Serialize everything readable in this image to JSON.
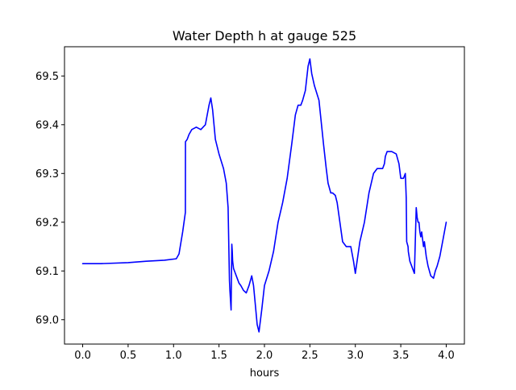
{
  "chart_data": {
    "type": "line",
    "title": "Water Depth h at gauge 525",
    "xlabel": "hours",
    "ylabel": "",
    "xlim": [
      -0.2,
      4.2
    ],
    "ylim": [
      68.95,
      69.56
    ],
    "x_ticks": [
      0.0,
      0.5,
      1.0,
      1.5,
      2.0,
      2.5,
      3.0,
      3.5,
      4.0
    ],
    "x_tick_labels": [
      "0.0",
      "0.5",
      "1.0",
      "1.5",
      "2.0",
      "2.5",
      "3.0",
      "3.5",
      "4.0"
    ],
    "y_ticks": [
      69.0,
      69.1,
      69.2,
      69.3,
      69.4,
      69.5
    ],
    "y_tick_labels": [
      "69.0",
      "69.1",
      "69.2",
      "69.3",
      "69.4",
      "69.5"
    ],
    "grid": false,
    "line_color": "#0000ff",
    "series": [
      {
        "x": [
          0.0,
          0.2,
          0.5,
          0.7,
          0.9,
          1.03,
          1.06,
          1.1,
          1.13,
          1.131,
          1.15,
          1.17,
          1.2,
          1.25,
          1.3,
          1.35,
          1.39,
          1.41,
          1.43,
          1.46,
          1.5,
          1.55,
          1.58,
          1.6,
          1.615,
          1.62,
          1.633,
          1.641,
          1.646,
          1.65,
          1.66,
          1.67,
          1.7,
          1.72,
          1.74,
          1.77,
          1.8,
          1.83,
          1.86,
          1.88,
          1.9,
          1.92,
          1.94,
          1.97,
          2.0,
          2.05,
          2.1,
          2.15,
          2.2,
          2.25,
          2.3,
          2.34,
          2.37,
          2.4,
          2.42,
          2.45,
          2.48,
          2.5,
          2.52,
          2.55,
          2.6,
          2.65,
          2.68,
          2.7,
          2.73,
          2.75,
          2.78,
          2.8,
          2.83,
          2.86,
          2.9,
          2.95,
          2.98,
          3.0,
          3.05,
          3.1,
          3.15,
          3.2,
          3.24,
          3.28,
          3.3,
          3.32,
          3.33,
          3.35,
          3.4,
          3.45,
          3.48,
          3.5,
          3.53,
          3.55,
          3.56,
          3.565,
          3.58,
          3.583,
          3.6,
          3.62,
          3.65,
          3.67,
          3.68,
          3.69,
          3.7,
          3.71,
          3.72,
          3.73,
          3.74,
          3.75,
          3.76,
          3.78,
          3.8,
          3.83,
          3.86,
          3.88,
          3.9,
          3.93,
          3.96,
          4.0
        ],
        "y": [
          69.115,
          69.115,
          69.117,
          69.12,
          69.122,
          69.125,
          69.135,
          69.18,
          69.22,
          69.365,
          69.37,
          69.38,
          69.39,
          69.395,
          69.39,
          69.4,
          69.44,
          69.455,
          69.43,
          69.37,
          69.34,
          69.31,
          69.28,
          69.23,
          69.08,
          69.06,
          69.02,
          69.155,
          69.14,
          69.12,
          69.105,
          69.1,
          69.085,
          69.075,
          69.07,
          69.06,
          69.055,
          69.07,
          69.09,
          69.07,
          69.03,
          68.99,
          68.975,
          69.02,
          69.07,
          69.1,
          69.14,
          69.2,
          69.24,
          69.29,
          69.36,
          69.42,
          69.44,
          69.44,
          69.45,
          69.47,
          69.52,
          69.535,
          69.505,
          69.48,
          69.45,
          69.36,
          69.31,
          69.28,
          69.26,
          69.26,
          69.255,
          69.24,
          69.2,
          69.16,
          69.15,
          69.15,
          69.12,
          69.095,
          69.16,
          69.2,
          69.26,
          69.3,
          69.31,
          69.31,
          69.31,
          69.32,
          69.335,
          69.345,
          69.345,
          69.34,
          69.32,
          69.29,
          69.29,
          69.3,
          69.25,
          69.16,
          69.15,
          69.14,
          69.12,
          69.11,
          69.095,
          69.23,
          69.21,
          69.2,
          69.2,
          69.18,
          69.17,
          69.18,
          69.165,
          69.15,
          69.16,
          69.13,
          69.11,
          69.09,
          69.085,
          69.1,
          69.11,
          69.13,
          69.16,
          69.2
        ]
      }
    ]
  }
}
